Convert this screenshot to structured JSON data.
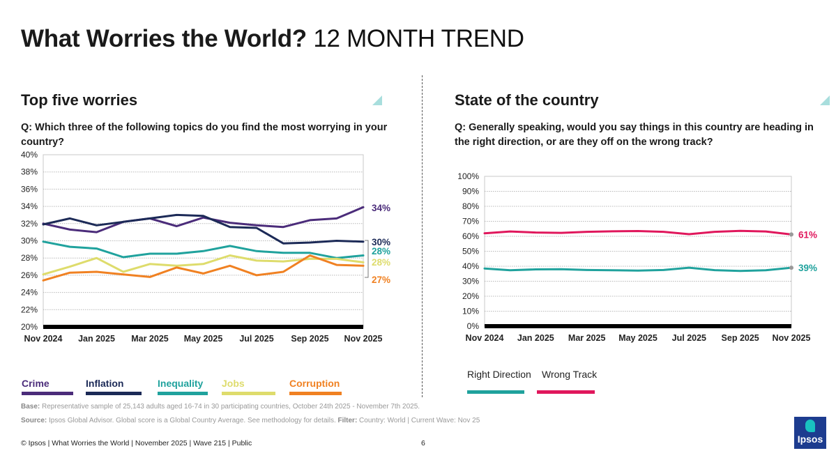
{
  "header": {
    "title_bold": "What Worries the World?",
    "title_rest": "12 MONTH TREND"
  },
  "left": {
    "section_title": "Top five worries",
    "question": "Q: Which three of the following topics do you find the most worrying in your country?"
  },
  "right": {
    "section_title": "State of the country",
    "question": "Q: Generally speaking, would you say things in this country are heading in the right direction, or are they off on the wrong track?"
  },
  "chart_data": [
    {
      "type": "line",
      "title": "Top five worries",
      "x": [
        "Nov 2024",
        "Dec 2024",
        "Jan 2025",
        "Feb 2025",
        "Mar 2025",
        "Apr 2025",
        "May 2025",
        "Jun 2025",
        "Jul 2025",
        "Aug 2025",
        "Sep 2025",
        "Oct 2025",
        "Nov 2025"
      ],
      "x_tick_labels": [
        "Nov 2024",
        "Jan 2025",
        "Mar 2025",
        "May 2025",
        "Jul 2025",
        "Sep 2025",
        "Nov 2025"
      ],
      "ylim": [
        20,
        40
      ],
      "y_tick_labels": [
        "20%",
        "22%",
        "24%",
        "26%",
        "28%",
        "30%",
        "32%",
        "34%",
        "36%",
        "38%",
        "40%"
      ],
      "series": [
        {
          "name": "Crime",
          "color": "#4b2c7a",
          "values": [
            32,
            31.3,
            31,
            32.2,
            32.6,
            31.7,
            32.7,
            32.1,
            31.8,
            31.6,
            32.4,
            32.6,
            33.9
          ],
          "end_label": "34%"
        },
        {
          "name": "Inflation",
          "color": "#1c2a57",
          "values": [
            31.9,
            32.6,
            31.8,
            32.2,
            32.6,
            33,
            32.9,
            31.6,
            31.5,
            29.7,
            29.8,
            30,
            29.9
          ],
          "end_label": "30%"
        },
        {
          "name": "Inequality",
          "color": "#20a29d",
          "values": [
            29.9,
            29.3,
            29.1,
            28.1,
            28.5,
            28.5,
            28.8,
            29.4,
            28.8,
            28.6,
            28.6,
            28,
            28.3
          ],
          "end_label": "28%"
        },
        {
          "name": "Jobs",
          "color": "#dedc6c",
          "values": [
            26.1,
            27,
            28,
            26.4,
            27.3,
            27.1,
            27.3,
            28.3,
            27.7,
            27.6,
            27.9,
            27.9,
            27.5
          ],
          "end_label": "28%"
        },
        {
          "name": "Corruption",
          "color": "#f08122",
          "values": [
            25.4,
            26.3,
            26.4,
            26.1,
            25.8,
            26.9,
            26.2,
            27.1,
            26,
            26.4,
            28.3,
            27.2,
            27.1
          ],
          "end_label": "27%"
        }
      ]
    },
    {
      "type": "line",
      "title": "State of the country",
      "x": [
        "Nov 2024",
        "Dec 2024",
        "Jan 2025",
        "Feb 2025",
        "Mar 2025",
        "Apr 2025",
        "May 2025",
        "Jun 2025",
        "Jul 2025",
        "Aug 2025",
        "Sep 2025",
        "Oct 2025",
        "Nov 2025"
      ],
      "x_tick_labels": [
        "Nov 2024",
        "Jan 2025",
        "Mar 2025",
        "May 2025",
        "Jul 2025",
        "Sep 2025",
        "Nov 2025"
      ],
      "ylim": [
        0,
        100
      ],
      "y_tick_labels": [
        "0%",
        "10%",
        "20%",
        "30%",
        "40%",
        "50%",
        "60%",
        "70%",
        "80%",
        "90%",
        "100%"
      ],
      "series": [
        {
          "name": "Right Direction",
          "color": "#20a29d",
          "values": [
            38.5,
            37.3,
            37.9,
            38,
            37.5,
            37.3,
            37.1,
            37.5,
            39,
            37.4,
            36.9,
            37.3,
            39
          ],
          "end_label": "39%"
        },
        {
          "name": "Wrong Track",
          "color": "#e0175c",
          "values": [
            62,
            63.2,
            62.5,
            62.3,
            63,
            63.3,
            63.5,
            63,
            61.4,
            63,
            63.6,
            63.2,
            61.2
          ],
          "end_label": "61%"
        }
      ]
    }
  ],
  "legend_left": [
    "Crime",
    "Inflation",
    "Inequality",
    "Jobs",
    "Corruption"
  ],
  "legend_right": [
    "Right Direction",
    "Wrong Track"
  ],
  "notes": {
    "base_label": "Base:",
    "base_text": " Representative sample of 25,143 adults aged 16-74 in 30 participating countries, October 24th 2025 - November 7th 2025.",
    "source_label": "Source:",
    "source_text": " Ipsos Global Advisor. Global score is a Global Country Average. See methodology for details. ",
    "filter_label": "Filter:",
    "filter_text": " Country: World | Current Wave: Nov 25"
  },
  "footer": {
    "text": "© Ipsos | What Worries the World | November 2025 | Wave 215 | Public",
    "page": "6",
    "logo": "Ipsos"
  }
}
